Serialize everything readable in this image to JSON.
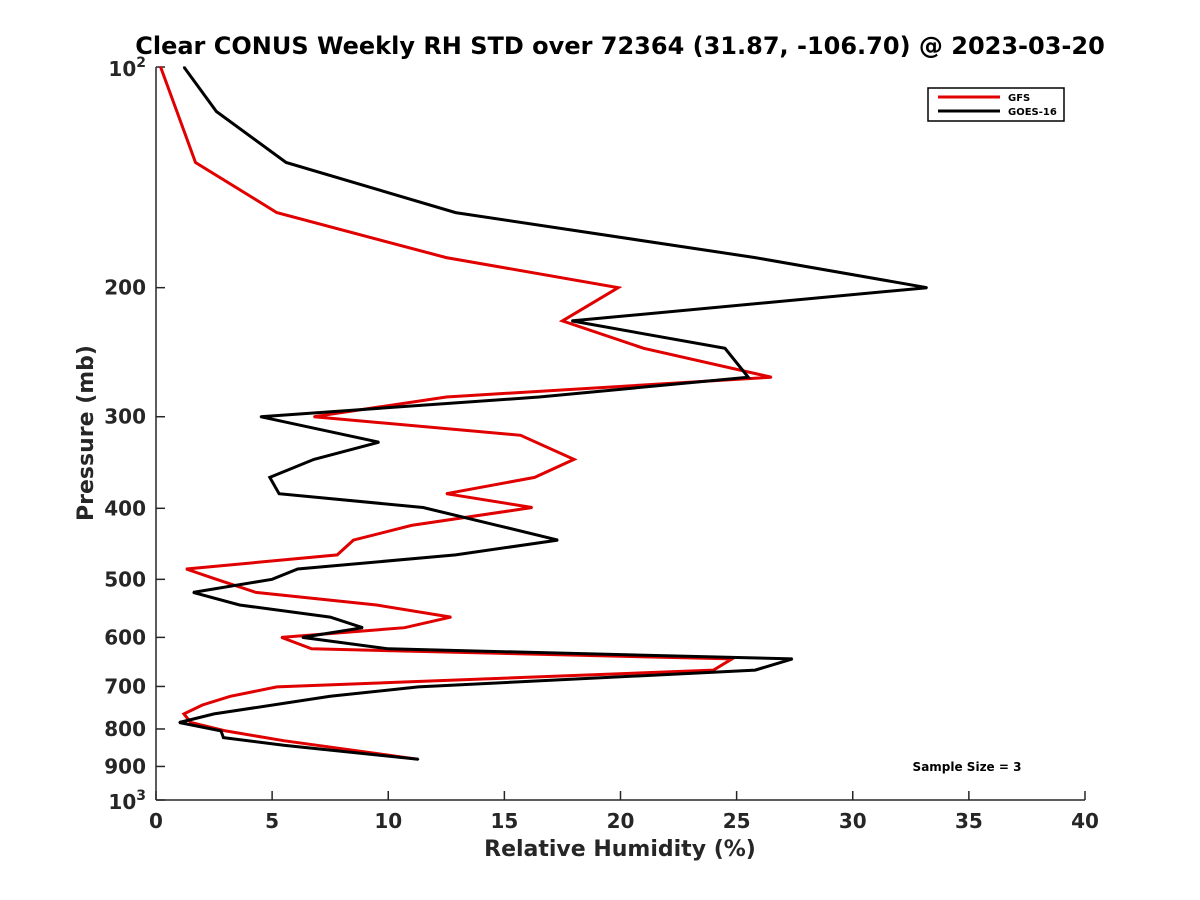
{
  "chart_data": {
    "type": "line",
    "title": "Clear CONUS Weekly RH STD over 72364 (31.87, -106.70) @ 2023-03-20",
    "xlabel": "Relative Humidity (%)",
    "ylabel": "Pressure (mb)",
    "xlim": [
      0,
      40
    ],
    "ylim": [
      100,
      1000
    ],
    "y_scale": "log",
    "y_reversed": true,
    "x_ticks": [
      "0",
      "5",
      "10",
      "15",
      "20",
      "25",
      "30",
      "35",
      "40"
    ],
    "y_ticks": [
      {
        "value": 100,
        "base": "10",
        "exp": "2"
      },
      {
        "value": 200,
        "label": "200"
      },
      {
        "value": 300,
        "label": "300"
      },
      {
        "value": 400,
        "label": "400"
      },
      {
        "value": 500,
        "label": "500"
      },
      {
        "value": 600,
        "label": "600"
      },
      {
        "value": 700,
        "label": "700"
      },
      {
        "value": 800,
        "label": "800"
      },
      {
        "value": 900,
        "label": "900"
      },
      {
        "value": 1000,
        "base": "10",
        "exp": "3"
      }
    ],
    "legend_position": "top-right",
    "series": [
      {
        "name": "GFS",
        "color": "#e00000",
        "points": [
          [
            0.2,
            100
          ],
          [
            0.9,
            115
          ],
          [
            1.7,
            135
          ],
          [
            5.2,
            158
          ],
          [
            12.5,
            182
          ],
          [
            19.9,
            200
          ],
          [
            17.5,
            222
          ],
          [
            21.0,
            242
          ],
          [
            26.5,
            265
          ],
          [
            12.5,
            282
          ],
          [
            6.8,
            300
          ],
          [
            15.7,
            318
          ],
          [
            18.0,
            343
          ],
          [
            16.3,
            363
          ],
          [
            12.5,
            382
          ],
          [
            16.2,
            399
          ],
          [
            11.0,
            422
          ],
          [
            8.5,
            442
          ],
          [
            7.8,
            463
          ],
          [
            1.3,
            484
          ],
          [
            2.6,
            500
          ],
          [
            4.3,
            521
          ],
          [
            9.5,
            542
          ],
          [
            12.7,
            563
          ],
          [
            10.7,
            582
          ],
          [
            5.4,
            600
          ],
          [
            6.7,
            622
          ],
          [
            24.8,
            642
          ],
          [
            24.0,
            665
          ],
          [
            5.2,
            701
          ],
          [
            3.2,
            722
          ],
          [
            2.0,
            742
          ],
          [
            1.2,
            763
          ],
          [
            1.5,
            784
          ],
          [
            3.0,
            805
          ],
          [
            5.5,
            830
          ],
          [
            11.3,
            880
          ]
        ]
      },
      {
        "name": "GOES-16",
        "color": "#000000",
        "points": [
          [
            1.2,
            100
          ],
          [
            2.6,
            115
          ],
          [
            5.6,
            135
          ],
          [
            12.9,
            158
          ],
          [
            25.8,
            182
          ],
          [
            33.2,
            200
          ],
          [
            17.9,
            222
          ],
          [
            24.5,
            242
          ],
          [
            25.5,
            265
          ],
          [
            16.5,
            282
          ],
          [
            4.5,
            300
          ],
          [
            9.6,
            325
          ],
          [
            6.8,
            343
          ],
          [
            4.9,
            363
          ],
          [
            5.3,
            382
          ],
          [
            11.5,
            399
          ],
          [
            14.7,
            422
          ],
          [
            17.3,
            442
          ],
          [
            12.9,
            463
          ],
          [
            6.1,
            484
          ],
          [
            5.0,
            500
          ],
          [
            1.6,
            521
          ],
          [
            3.6,
            542
          ],
          [
            7.5,
            563
          ],
          [
            8.9,
            582
          ],
          [
            6.3,
            600
          ],
          [
            10.0,
            622
          ],
          [
            27.4,
            642
          ],
          [
            25.8,
            665
          ],
          [
            11.3,
            701
          ],
          [
            7.5,
            722
          ],
          [
            2.5,
            763
          ],
          [
            1.0,
            784
          ],
          [
            2.8,
            805
          ],
          [
            2.9,
            822
          ],
          [
            5.5,
            842
          ],
          [
            11.3,
            880
          ]
        ]
      }
    ],
    "annotation": "Sample Size = 3"
  }
}
